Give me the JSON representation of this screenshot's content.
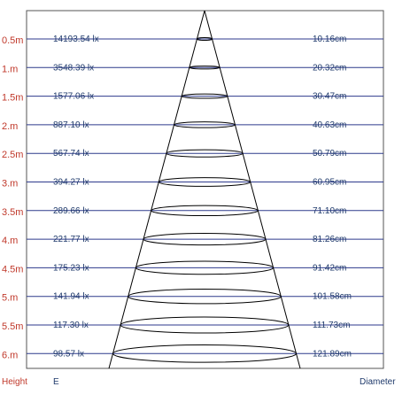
{
  "rows": [
    {
      "height": "0.5m",
      "lux": "14193.54 lx",
      "diameter": "10.16cm"
    },
    {
      "height": "1.m",
      "lux": "3548.39 lx",
      "diameter": "20.32cm"
    },
    {
      "height": "1.5m",
      "lux": "1577.06 lx",
      "diameter": "30.47cm"
    },
    {
      "height": "2.m",
      "lux": "887.10 lx",
      "diameter": "40.63cm"
    },
    {
      "height": "2.5m",
      "lux": "567.74 lx",
      "diameter": "50.79cm"
    },
    {
      "height": "3.m",
      "lux": "394.27 lx",
      "diameter": "60.95cm"
    },
    {
      "height": "3.5m",
      "lux": "289.66 lx",
      "diameter": "71.10cm"
    },
    {
      "height": "4.m",
      "lux": "221.77 lx",
      "diameter": "81.26cm"
    },
    {
      "height": "4.5m",
      "lux": "175.23 lx",
      "diameter": "91.42cm"
    },
    {
      "height": "5.m",
      "lux": "141.94 lx",
      "diameter": "101.58cm"
    },
    {
      "height": "5.5m",
      "lux": "117.30 lx",
      "diameter": "111.73cm"
    },
    {
      "height": "6.m",
      "lux": "98.57 lx",
      "diameter": "121.89cm"
    }
  ],
  "footer": {
    "height_label": "Height",
    "e_label": "E",
    "diameter_label": "Diameter"
  },
  "colors": {
    "height_text": "#c0392b",
    "value_text": "#1f3a6b",
    "row_line": "#2d3a8c",
    "frame": "#555555",
    "beam": "#000000"
  }
}
